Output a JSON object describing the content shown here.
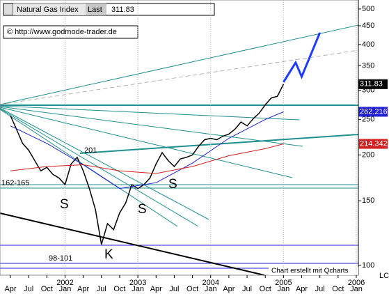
{
  "chart_data": {
    "type": "line",
    "title": "Natural Gas Index",
    "last_label": "Last",
    "last_value": 311.83,
    "source": "© http://www.godmode-trader.de",
    "credit": "Chart erstellt mit Qcharts",
    "corner_text": "LC",
    "annotations": [
      "201",
      "162-165",
      "98-101",
      "S",
      "S",
      "S",
      "K"
    ],
    "log_scale": true,
    "ylim": [
      94,
      529
    ],
    "yticks": [
      100,
      150,
      200,
      250,
      300,
      350,
      400,
      450,
      500
    ],
    "xlim": [
      "2001-04",
      "2006-01"
    ],
    "xticks": [
      {
        "value": "2001-04",
        "label": "Apr"
      },
      {
        "value": "2001-07",
        "label": "Jul"
      },
      {
        "value": "2001-10",
        "label": "Oct"
      },
      {
        "value": "2002-01",
        "label": "Jan"
      },
      {
        "value": "2002-04",
        "label": "Apr"
      },
      {
        "value": "2002-07",
        "label": "Jul"
      },
      {
        "value": "2002-10",
        "label": "Oct"
      },
      {
        "value": "2003-01",
        "label": "Jan"
      },
      {
        "value": "2003-04",
        "label": "Apr"
      },
      {
        "value": "2003-07",
        "label": "Jul"
      },
      {
        "value": "2003-10",
        "label": "Oct"
      },
      {
        "value": "2004-01",
        "label": "Jan"
      },
      {
        "value": "2004-04",
        "label": "Apr"
      },
      {
        "value": "2004-07",
        "label": "Jul"
      },
      {
        "value": "2004-10",
        "label": "Oct"
      },
      {
        "value": "2005-01",
        "label": "Jan"
      },
      {
        "value": "2005-04",
        "label": "Apr"
      },
      {
        "value": "2005-07",
        "label": "Jul"
      },
      {
        "value": "2005-10",
        "label": "Oct"
      },
      {
        "value": "2006-01",
        "label": "Jan"
      }
    ],
    "years": [
      {
        "value": "2002-01",
        "label": "2002"
      },
      {
        "value": "2003-01",
        "label": "2003"
      },
      {
        "value": "2004-01",
        "label": "2004"
      },
      {
        "value": "2005-01",
        "label": "2005"
      },
      {
        "value": "2006-01",
        "label": "2006"
      }
    ],
    "series": [
      {
        "color": "#000000",
        "x": [
          "2001-04",
          "2001-05",
          "2001-06",
          "2001-07",
          "2001-08",
          "2001-09",
          "2001-10",
          "2001-11",
          "2001-12",
          "2002-01",
          "2002-02",
          "2002-03",
          "2002-04",
          "2002-05",
          "2002-06",
          "2002-07",
          "2002-08",
          "2002-09",
          "2002-10",
          "2002-11",
          "2002-12",
          "2003-01",
          "2003-02",
          "2003-03",
          "2003-04",
          "2003-05",
          "2003-06",
          "2003-07",
          "2003-08",
          "2003-09",
          "2003-10",
          "2003-11",
          "2003-12",
          "2004-01",
          "2004-02",
          "2004-03",
          "2004-04",
          "2004-05",
          "2004-06",
          "2004-07",
          "2004-08",
          "2004-09",
          "2004-10",
          "2004-11",
          "2004-12",
          "2005-01"
        ],
        "values": [
          256,
          235,
          215,
          206,
          193,
          181,
          185,
          177,
          173,
          166,
          189,
          197,
          181,
          162,
          142,
          114,
          130,
          125,
          139,
          148,
          166,
          162,
          166,
          173,
          189,
          203,
          193,
          186,
          195,
          197,
          200,
          211,
          220,
          222,
          220,
          225,
          228,
          235,
          246,
          240,
          251,
          260,
          274,
          286,
          289,
          311.83
        ]
      },
      {
        "color": "#2020d0",
        "x": [
          "2001-04",
          "2001-10",
          "2002-04",
          "2002-10",
          "2003-04",
          "2003-10",
          "2004-04",
          "2004-10",
          "2005-01"
        ],
        "values": [
          240,
          215,
          188,
          162,
          168,
          190,
          222,
          250,
          262.216
        ],
        "end_label": 262.216
      },
      {
        "color": "#d02020",
        "x": [
          "2001-04",
          "2001-10",
          "2002-04",
          "2002-10",
          "2003-04",
          "2003-10",
          "2004-04",
          "2004-10",
          "2005-01"
        ],
        "values": [
          181,
          186,
          188,
          181,
          178,
          186,
          199,
          208,
          214.342
        ],
        "end_label": 214.342
      },
      {
        "color": "#1e3cff",
        "x": [
          "2005-01",
          "2005-03",
          "2005-04",
          "2005-07"
        ],
        "values": [
          316,
          357,
          327,
          431
        ]
      }
    ]
  }
}
